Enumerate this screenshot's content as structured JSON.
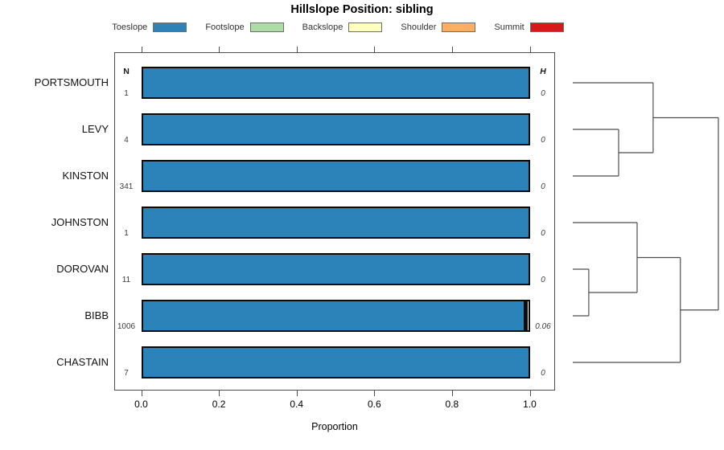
{
  "title": "Hillslope Position: sibling",
  "legend": {
    "items": [
      {
        "label": "Toeslope",
        "color": "#2B83BA"
      },
      {
        "label": "Footslope",
        "color": "#ABDDA4"
      },
      {
        "label": "Backslope",
        "color": "#FFFFBF"
      },
      {
        "label": "Shoulder",
        "color": "#FDAE61"
      },
      {
        "label": "Summit",
        "color": "#D7191C"
      }
    ]
  },
  "chart_data": {
    "type": "bar",
    "orientation": "horizontal-stacked",
    "title": "Hillslope Position: sibling",
    "xlabel": "Proportion",
    "xlim": [
      0,
      1
    ],
    "x_tick_labels": [
      "0.0",
      "0.2",
      "0.4",
      "0.6",
      "0.8",
      "1.0"
    ],
    "x_tick_values": [
      0.0,
      0.2,
      0.4,
      0.6,
      0.8,
      1.0
    ],
    "categories": [
      "Toeslope",
      "Footslope",
      "Backslope",
      "Shoulder",
      "Summit"
    ],
    "n_header": "N",
    "h_header": "H",
    "rows": [
      {
        "label": "PORTSMOUTH",
        "n": "1",
        "h": "0",
        "segments": [
          {
            "category": "Toeslope",
            "value": 1.0,
            "color": "#2B83BA"
          }
        ]
      },
      {
        "label": "LEVY",
        "n": "4",
        "h": "0",
        "segments": [
          {
            "category": "Toeslope",
            "value": 1.0,
            "color": "#2B83BA"
          }
        ]
      },
      {
        "label": "KINSTON",
        "n": "341",
        "h": "0",
        "segments": [
          {
            "category": "Toeslope",
            "value": 1.0,
            "color": "#2B83BA"
          }
        ]
      },
      {
        "label": "JOHNSTON",
        "n": "1",
        "h": "0",
        "segments": [
          {
            "category": "Toeslope",
            "value": 1.0,
            "color": "#2B83BA"
          }
        ]
      },
      {
        "label": "DOROVAN",
        "n": "11",
        "h": "0",
        "segments": [
          {
            "category": "Toeslope",
            "value": 1.0,
            "color": "#2B83BA"
          }
        ]
      },
      {
        "label": "BIBB",
        "n": "1006",
        "h": "0.06",
        "segments": [
          {
            "category": "Toeslope",
            "value": 0.989,
            "color": "#2B83BA"
          },
          {
            "category": "other",
            "value": 0.011,
            "color": "#0d0d0d"
          }
        ]
      },
      {
        "label": "CHASTAIN",
        "n": "7",
        "h": "0",
        "segments": [
          {
            "category": "Toeslope",
            "value": 1.0,
            "color": "#2B83BA"
          }
        ]
      }
    ],
    "dendrogram": {
      "line_color": "#4d4d4d",
      "tree": {
        "h": 1.0,
        "children": [
          {
            "h": 0.552,
            "children": [
              "PORTSMOUTH",
              {
                "h": 0.315,
                "children": [
                  "LEVY",
                  "KINSTON"
                ]
              }
            ]
          },
          {
            "h": 0.739,
            "children": [
              {
                "h": 0.442,
                "children": [
                  "JOHNSTON",
                  {
                    "h": 0.11,
                    "children": [
                      "DOROVAN",
                      "BIBB"
                    ]
                  }
                ]
              },
              "CHASTAIN"
            ]
          }
        ]
      }
    }
  }
}
